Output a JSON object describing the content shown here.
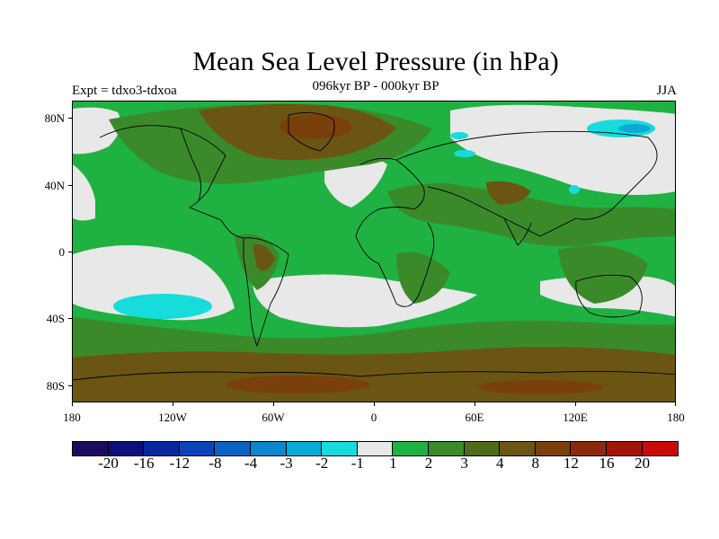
{
  "title": "Mean Sea Level Pressure (in hPa)",
  "subtitle": "096kyr BP - 000kyr BP",
  "experiment": "Expt = tdxo3-tdxoa",
  "season": "JJA",
  "lat_labels": [
    "80N",
    "40N",
    "0",
    "40S",
    "80S"
  ],
  "lon_labels": [
    "180",
    "120W",
    "60W",
    "0",
    "60E",
    "120E",
    "180"
  ],
  "colorbar": {
    "colors": [
      "#1d0b5e",
      "#0a0f7a",
      "#0826a0",
      "#0a44b8",
      "#0a62c4",
      "#0a86cc",
      "#0aaad4",
      "#16dcdc",
      "#e8e8e8",
      "#1fb243",
      "#3a8a2a",
      "#4e6b1a",
      "#6b5512",
      "#7a400c",
      "#8a2a0a",
      "#a01508",
      "#c80a0a"
    ],
    "labels": [
      "-20",
      "-16",
      "-12",
      "-8",
      "-4",
      "-3",
      "-2",
      "-1",
      "1",
      "2",
      "3",
      "4",
      "8",
      "12",
      "16",
      "20"
    ]
  }
}
